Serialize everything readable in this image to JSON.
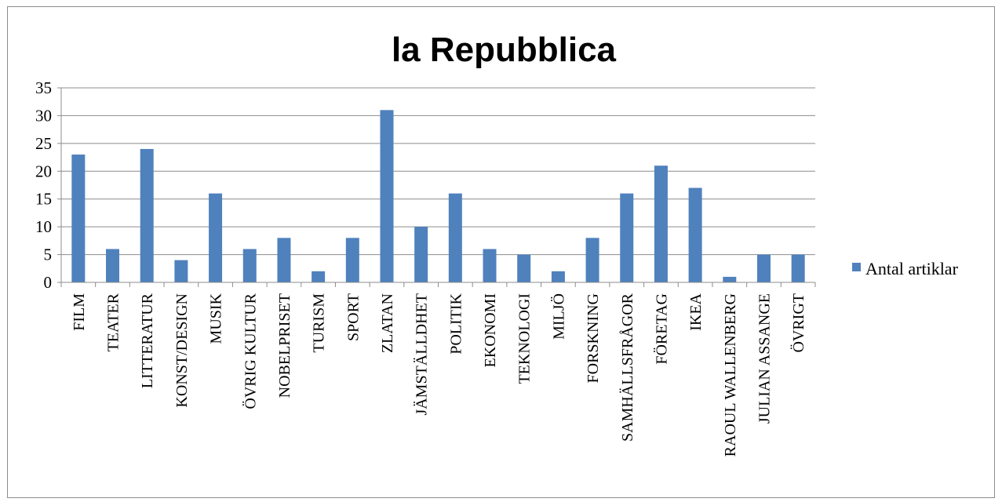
{
  "chart_data": {
    "type": "bar",
    "title": "la Repubblica",
    "xlabel": "",
    "ylabel": "",
    "categories": [
      "FILM",
      "TEATER",
      "LITTERATUR",
      "KONST/DESIGN",
      "MUSIK",
      "ÖVRIG KULTUR",
      "NOBELPRISET",
      "TURISM",
      "SPORT",
      "ZLATAN",
      "JÄMSTÄLLDHET",
      "POLITIK",
      "EKONOMI",
      "TEKNOLOGI",
      "MILJÖ",
      "FORSKNING",
      "SAMHÄLLSFRÅGOR",
      "FÖRETAG",
      "IKEA",
      "RAOUL WALLENBERG",
      "JULIAN ASSANGE",
      "ÖVRIGT"
    ],
    "series": [
      {
        "name": "Antal artiklar",
        "values": [
          23,
          6,
          24,
          4,
          16,
          6,
          8,
          2,
          8,
          31,
          10,
          16,
          6,
          5,
          2,
          8,
          16,
          21,
          17,
          1,
          5,
          5
        ]
      }
    ],
    "ylim": [
      0,
      35
    ],
    "yticks": [
      0,
      5,
      10,
      15,
      20,
      25,
      30,
      35
    ],
    "grid": true,
    "legend": "right",
    "colors": {
      "bar": "#4f81bd",
      "grid": "#8c8c8c",
      "axis": "#8c8c8c"
    }
  }
}
